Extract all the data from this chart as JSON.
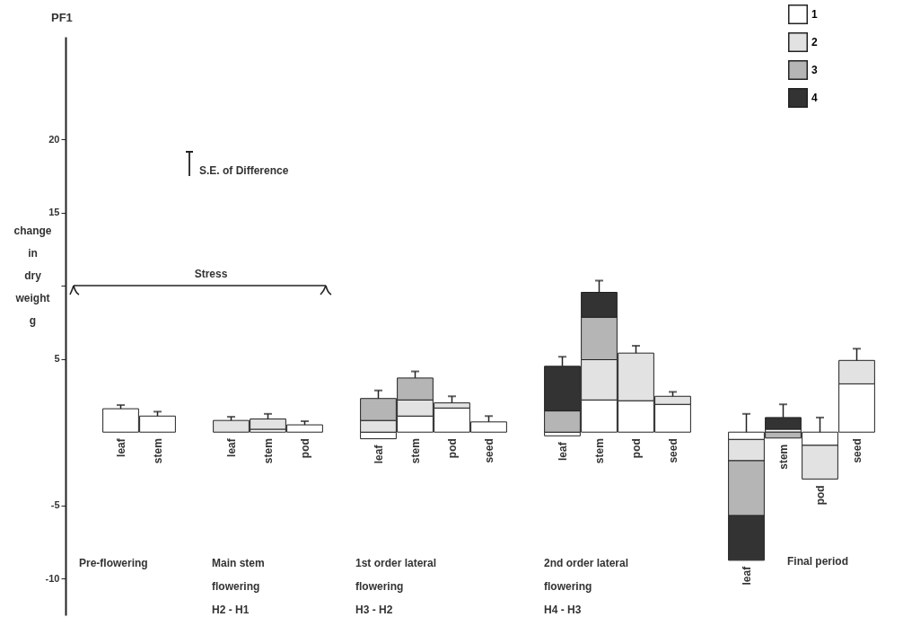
{
  "chart_data": {
    "type": "bar",
    "title": "PF1",
    "ylabel": "change in dry weight g",
    "stacked": true,
    "legend": "top right",
    "categories": [
      null,
      "leaf",
      "stem",
      null,
      "leaf",
      "stem",
      "pod",
      null,
      "leaf",
      "stem",
      "pod",
      "seed",
      null,
      "leaf",
      "stem",
      "pod",
      "seed",
      null,
      "leaf",
      "stem",
      "pod",
      "seed"
    ],
    "ylim": [
      -12.5,
      27
    ],
    "yticks": [
      -10,
      -5,
      5,
      {
        "value": 10,
        "label": null
      },
      15,
      20
    ],
    "series": [
      {
        "name": "1",
        "color": "#ffffff",
        "values": [
          null,
          1.6,
          1.1,
          null,
          null,
          0.2,
          0.5,
          null,
          -0.45,
          1.1,
          1.65,
          0.7,
          null,
          -0.25,
          2.2,
          2.15,
          1.9,
          null,
          -0.5,
          0.2,
          -0.9,
          3.3
        ],
        "errors": [
          null,
          [
            1.6,
            1.85
          ],
          [
            1.1,
            1.4
          ],
          null,
          null,
          null,
          [
            0.5,
            0.75
          ],
          null,
          null,
          null,
          null,
          [
            0.7,
            1.1
          ],
          null,
          null,
          null,
          null,
          null,
          null,
          [
            0,
            1.25
          ],
          null,
          [
            0,
            1.0
          ],
          null
        ]
      },
      {
        "name": "2",
        "color": "#e2e2e2",
        "values": [
          null,
          null,
          null,
          null,
          0.8,
          0.7,
          null,
          null,
          0.8,
          1.1,
          0.35,
          null,
          null,
          null,
          2.75,
          3.25,
          0.55,
          null,
          -1.45,
          null,
          -2.3,
          1.6
        ],
        "errors": [
          null,
          null,
          null,
          null,
          [
            0.8,
            1.05
          ],
          [
            0.9,
            1.25
          ],
          null,
          null,
          null,
          null,
          [
            2.0,
            2.45
          ],
          null,
          null,
          null,
          null,
          [
            5.4,
            5.9
          ],
          [
            2.45,
            2.75
          ],
          null,
          null,
          null,
          null,
          [
            4.9,
            5.7
          ]
        ]
      },
      {
        "name": "3",
        "color": "#b5b5b5",
        "values": [
          null,
          null,
          null,
          null,
          null,
          null,
          null,
          null,
          1.5,
          1.5,
          null,
          null,
          null,
          1.45,
          2.9,
          null,
          null,
          null,
          -3.75,
          -0.4,
          null,
          null
        ],
        "errors": [
          null,
          null,
          null,
          null,
          null,
          null,
          null,
          null,
          [
            2.3,
            2.85
          ],
          [
            3.7,
            4.15
          ],
          null,
          null,
          null,
          null,
          null,
          null,
          null,
          null,
          null,
          null,
          null,
          null
        ]
      },
      {
        "name": "4",
        "color": "#333333",
        "values": [
          null,
          null,
          null,
          null,
          null,
          null,
          null,
          null,
          null,
          null,
          null,
          null,
          null,
          3.05,
          1.7,
          null,
          null,
          null,
          -3.05,
          0.8,
          null,
          null
        ],
        "errors": [
          null,
          null,
          null,
          null,
          null,
          null,
          null,
          null,
          null,
          null,
          null,
          null,
          null,
          [
            4.5,
            5.15
          ],
          [
            9.55,
            10.35
          ],
          null,
          null,
          null,
          null,
          [
            1.0,
            1.9
          ],
          null,
          null
        ]
      }
    ],
    "annotations": [
      "S.E. of Difference",
      "Stress",
      "Pre-flowering",
      "Main stem\nflowering\nH2 - H1",
      "1st order lateral\nflowering\nH3 - H2",
      "2nd order lateral\nflowering\nH4 - H3",
      "Final period"
    ]
  }
}
